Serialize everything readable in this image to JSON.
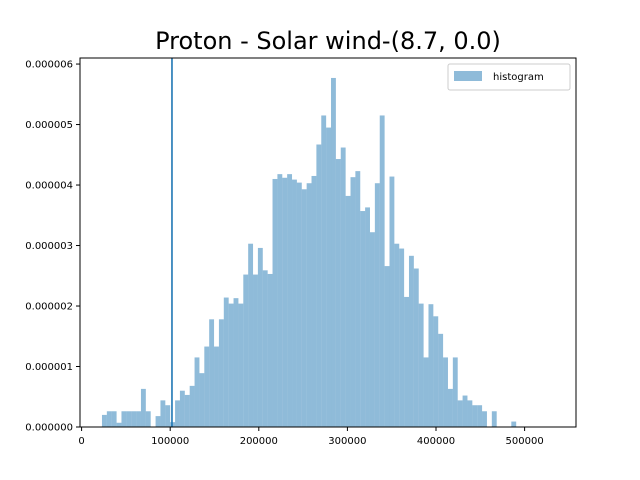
{
  "chart_data": {
    "type": "bar",
    "title": "Proton - Solar wind-(8.7, 0.0)",
    "xlabel": "",
    "ylabel": "",
    "xlim": [
      -1800,
      558000
    ],
    "ylim": [
      0,
      6.1e-06
    ],
    "grid": false,
    "legend_position": "upper-right",
    "x_ticks": [
      {
        "value": 0,
        "label": "0"
      },
      {
        "value": 100000,
        "label": "100000"
      },
      {
        "value": 200000,
        "label": "200000"
      },
      {
        "value": 300000,
        "label": "300000"
      },
      {
        "value": 400000,
        "label": "400000"
      },
      {
        "value": 500000,
        "label": "500000"
      }
    ],
    "y_ticks": [
      {
        "value": 0,
        "label": "0.000000"
      },
      {
        "value": 1e-06,
        "label": "0.000001"
      },
      {
        "value": 2e-06,
        "label": "0.000002"
      },
      {
        "value": 3e-06,
        "label": "0.000003"
      },
      {
        "value": 4e-06,
        "label": "0.000004"
      },
      {
        "value": 5e-06,
        "label": "0.000005"
      },
      {
        "value": 6e-06,
        "label": "0.000006"
      }
    ],
    "vline": {
      "x": 102000,
      "color": "#1f77b4"
    },
    "series": [
      {
        "name": "histogram",
        "color": "#1f77b4",
        "opacity": 0.5,
        "bin_start": 23000,
        "bin_width": 5500,
        "values": [
          2e-07,
          2.6e-07,
          2.6e-07,
          7e-08,
          2.6e-07,
          2.6e-07,
          2.6e-07,
          2.6e-07,
          6.3e-07,
          2.6e-07,
          0,
          1.8e-07,
          4.4e-07,
          3.6e-07,
          8e-08,
          4.4e-07,
          6e-07,
          5.3e-07,
          6.8e-07,
          1.15e-06,
          8.9e-07,
          1.33e-06,
          1.78e-06,
          1.33e-06,
          1.78e-06,
          2.14e-06,
          2.04e-06,
          2.13e-06,
          2.04e-06,
          2.52e-06,
          3.03e-06,
          2.52e-06,
          2.96e-06,
          2.59e-06,
          2.53e-06,
          4.1e-06,
          4.18e-06,
          4.12e-06,
          4.18e-06,
          4.09e-06,
          4.04e-06,
          3.93e-06,
          4.03e-06,
          4.15e-06,
          4.67e-06,
          5.15e-06,
          4.95e-06,
          5.77e-06,
          4.43e-06,
          4.62e-06,
          3.82e-06,
          4.13e-06,
          4.23e-06,
          3.57e-06,
          3.63e-06,
          3.22e-06,
          4.03e-06,
          5.15e-06,
          2.66e-06,
          4.14e-06,
          3.03e-06,
          2.95e-06,
          2.15e-06,
          2.83e-06,
          2.62e-06,
          2.04e-06,
          1.15e-06,
          2.03e-06,
          1.83e-06,
          1.54e-06,
          1.15e-06,
          6.3e-07,
          1.15e-06,
          4.4e-07,
          5.2e-07,
          4.4e-07,
          3.6e-07,
          3.6e-07,
          2.6e-07,
          0,
          2.6e-07,
          0,
          0,
          0,
          9e-08
        ]
      }
    ]
  }
}
